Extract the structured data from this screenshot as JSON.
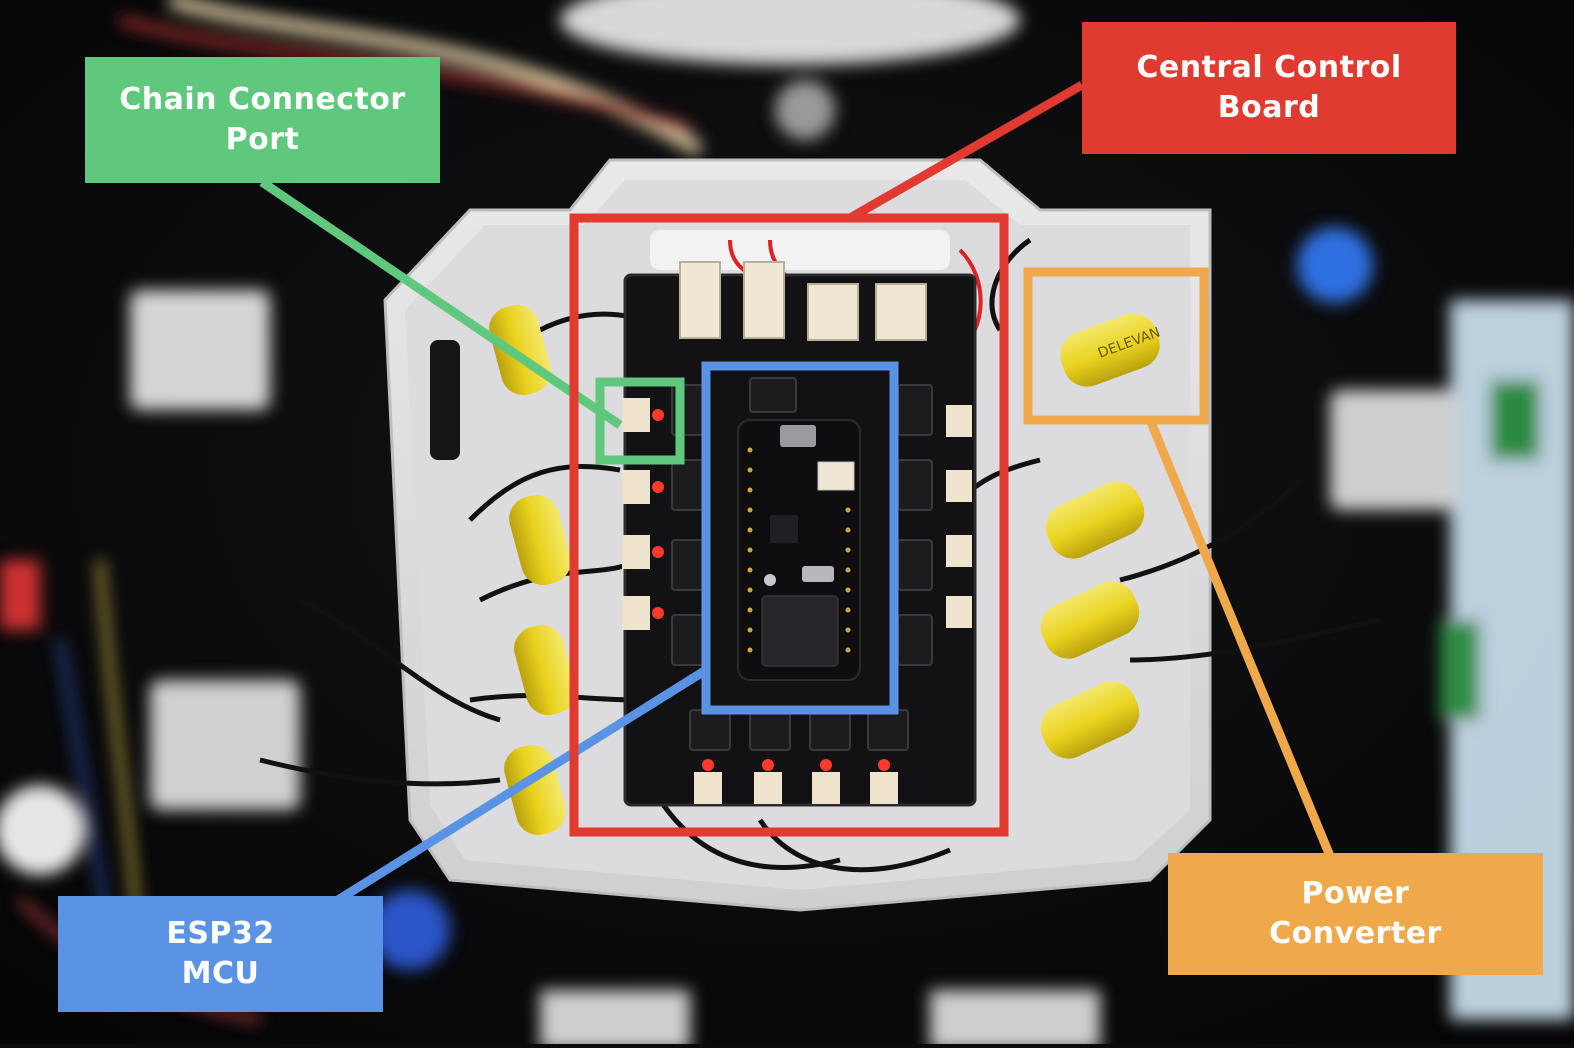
{
  "figure": {
    "description_colors": {
      "chain_connector": "#5fc87c",
      "central_board": "#e03a31",
      "esp32": "#5b93e4",
      "power": "#f0a94a"
    },
    "labels": {
      "chain_connector": {
        "line1": "Chain Connector",
        "line2": "Port"
      },
      "central_board": {
        "line1": "Central Control",
        "line2": "Board"
      },
      "esp32": {
        "line1": "ESP32",
        "line2": "MCU"
      },
      "power": {
        "line1": "Power",
        "line2": "Converter"
      }
    },
    "component_markings": {
      "inductor_brand": "DELEVAN"
    }
  }
}
